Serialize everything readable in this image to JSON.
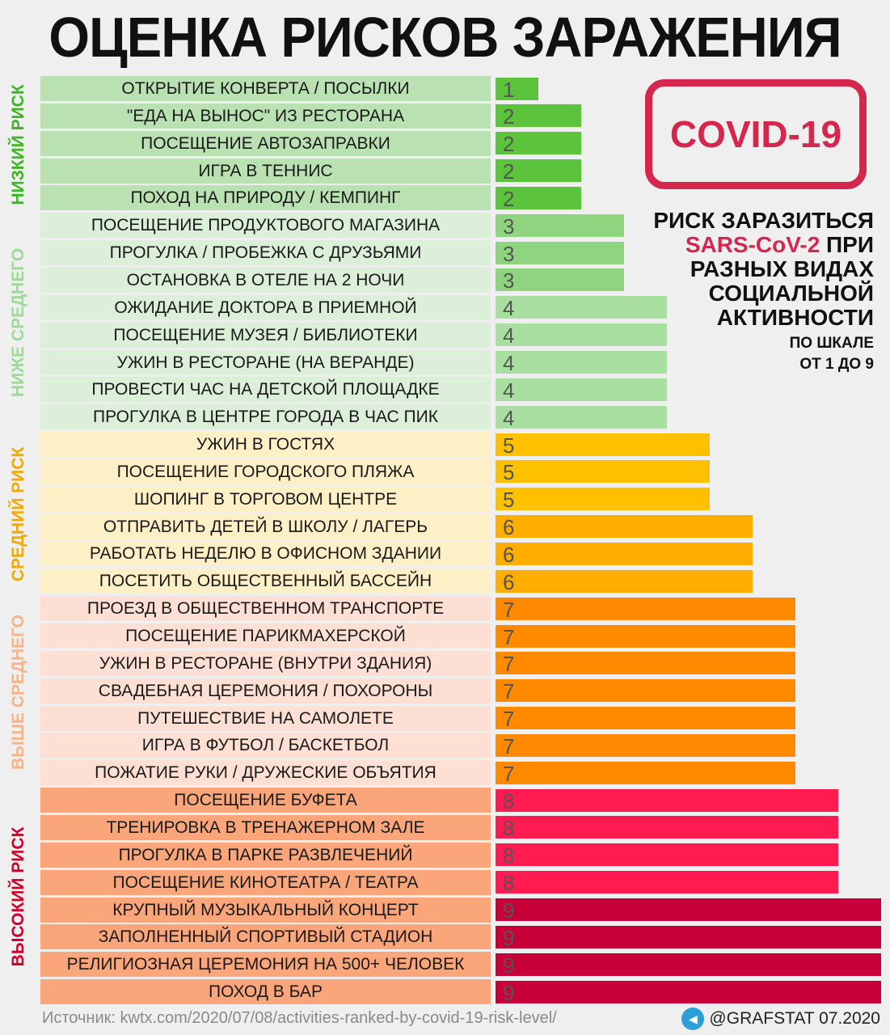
{
  "chart_data": {
    "type": "bar",
    "orientation": "horizontal",
    "title": "ОЦЕНКА РИСКОВ ЗАРАЖЕНИЯ",
    "xlim": [
      0,
      9
    ],
    "grid": false,
    "categories": [
      "ОТКРЫТИЕ КОНВЕРТА / ПОСЫЛКИ",
      "\"ЕДА НА ВЫНОС\" ИЗ РЕСТОРАНА",
      "ПОСЕЩЕНИЕ АВТОЗАПРАВКИ",
      "ИГРА В ТЕННИС",
      "ПОХОД НА ПРИРОДУ / КЕМПИНГ",
      "ПОСЕЩЕНИЕ ПРОДУКТОВОГО МАГАЗИНА",
      "ПРОГУЛКА / ПРОБЕЖКА С ДРУЗЬЯМИ",
      "ОСТАНОВКА В ОТЕЛЕ НА 2 НОЧИ",
      "ОЖИДАНИЕ ДОКТОРА В ПРИЕМНОЙ",
      "ПОСЕЩЕНИЕ МУЗЕЯ / БИБЛИОТЕКИ",
      "УЖИН В РЕСТОРАНЕ (НА ВЕРАНДЕ)",
      "ПРОВЕСТИ ЧАС НА ДЕТСКОЙ ПЛОЩАДКЕ",
      "ПРОГУЛКА В ЦЕНТРЕ ГОРОДА В ЧАС ПИК",
      "УЖИН В ГОСТЯХ",
      "ПОСЕЩЕНИЕ ГОРОДСКОГО ПЛЯЖА",
      "ШОПИНГ В ТОРГОВОМ ЦЕНТРЕ",
      "ОТПРАВИТЬ ДЕТЕЙ В ШКОЛУ / ЛАГЕРЬ",
      "РАБОТАТЬ НЕДЕЛЮ В ОФИСНОМ ЗДАНИИ",
      "ПОСЕТИТЬ ОБЩЕСТВЕННЫЙ БАССЕЙН",
      "ПРОЕЗД В ОБЩЕСТВЕННОМ ТРАНСПОРТЕ",
      "ПОСЕЩЕНИЕ ПАРИКМАХЕРСКОЙ",
      "УЖИН В РЕСТОРАНЕ (ВНУТРИ ЗДАНИЯ)",
      "СВАДЕБНАЯ ЦЕРЕМОНИЯ / ПОХОРОНЫ",
      "ПУТЕШЕСТВИЕ НА САМОЛЕТЕ",
      "ИГРА В ФУТБОЛ / БАСКЕТБОЛ",
      "ПОЖАТИЕ РУКИ / ДРУЖЕСКИЕ ОБЪЯТИЯ",
      "ПОСЕЩЕНИЕ БУФЕТА",
      "ТРЕНИРОВКА В ТРЕНАЖЕРНОМ ЗАЛЕ",
      "ПРОГУЛКА В ПАРКЕ РАЗВЛЕЧЕНИЙ",
      "ПОСЕЩЕНИЕ КИНОТЕАТРА / ТЕАТРА",
      "КРУПНЫЙ МУЗЫКАЛЬНЫЙ КОНЦЕРТ",
      "ЗАПОЛНЕННЫЙ СПОРТИВЫЙ СТАДИОН",
      "РЕЛИГИОЗНАЯ ЦЕРЕМОНИЯ НА 500+ ЧЕЛОВЕК",
      "ПОХОД В БАР"
    ],
    "values": [
      1,
      2,
      2,
      2,
      2,
      3,
      3,
      3,
      4,
      4,
      4,
      4,
      4,
      5,
      5,
      5,
      6,
      6,
      6,
      7,
      7,
      7,
      7,
      7,
      7,
      7,
      8,
      8,
      8,
      8,
      9,
      9,
      9,
      9
    ],
    "groups": [
      {
        "name": "НИЗКИЙ РИСК",
        "start": 0,
        "end": 4,
        "color": "#3fb526",
        "row_bg": "#b9e1b1"
      },
      {
        "name": "НИЖЕ СРЕДНЕГО",
        "start": 5,
        "end": 12,
        "color": "#9fd89a",
        "row_bg": "#dcefd8"
      },
      {
        "name": "СРЕДНИЙ РИСК",
        "start": 13,
        "end": 18,
        "color": "#f2a900",
        "row_bg": "#fdefc6"
      },
      {
        "name": "ВЫШЕ СРЕДНЕГО",
        "start": 19,
        "end": 25,
        "color": "#f7b48a",
        "row_bg": "#fde0d3"
      },
      {
        "name": "ВЫСОКИЙ РИСК",
        "start": 26,
        "end": 33,
        "color": "#d0002d",
        "row_bg": "#fba67a"
      }
    ],
    "value_colors": {
      "1": "#5cc43c",
      "2": "#5cc43c",
      "3": "#8fd47e",
      "4": "#a9dfa0",
      "5": "#ffc000",
      "6": "#ffad00",
      "7": "#ff8a00",
      "8": "#ff1a4f",
      "9": "#c8003a"
    }
  },
  "stamp": "COVID-19",
  "subtitle": {
    "line1": "РИСК ЗАРАЗИТЬСЯ",
    "highlight": "SARS-CoV-2",
    "line2_rest": " ПРИ",
    "line3": "РАЗНЫХ ВИДАХ",
    "line4": "СОЦИАЛЬНОЙ",
    "line5": "АКТИВНОСТИ",
    "scale1": "ПО ШКАЛЕ",
    "scale2": "ОТ 1 ДО 9"
  },
  "footer": {
    "source": "Источник: kwtx.com/2020/07/08/activities-ranked-by-covid-19-risk-level/",
    "credit": "@GRAFSTAT 07.2020",
    "credit_icon": "telegram-icon"
  }
}
